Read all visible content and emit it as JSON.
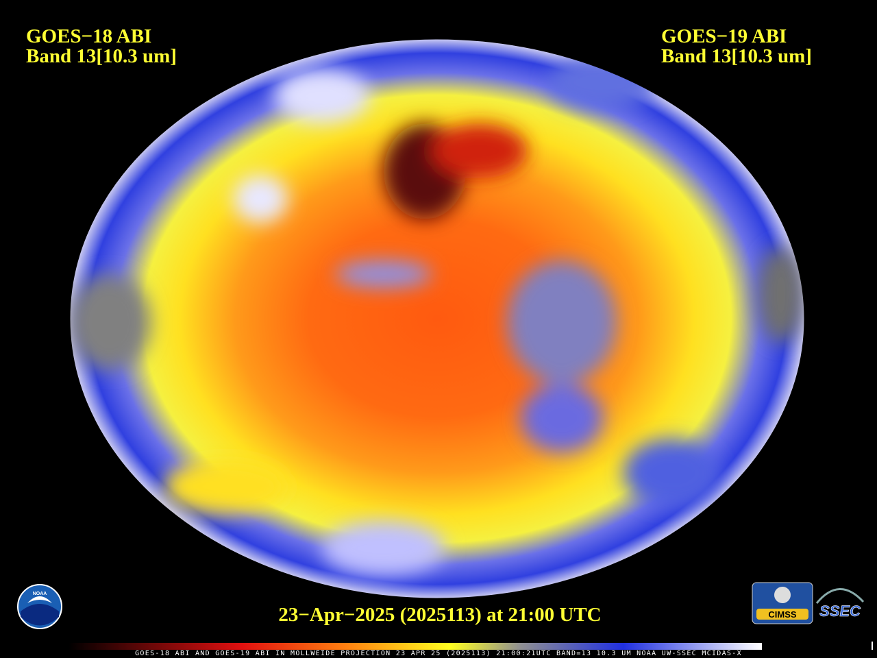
{
  "header": {
    "left_line1": "GOES−18 ABI",
    "left_line2": "Band 13[10.3 um]",
    "right_line1": "GOES−19 ABI",
    "right_line2": "Band 13[10.3 um]"
  },
  "timestamp": "23−Apr−2025 (2025113) at 21:00 UTC",
  "footer": "GOES-18 ABI AND GOES-19 ABI IN MOLLWEIDE PROJECTION 23 APR 25 (2025113) 21:00:21UTC BAND=13 10.3 UM NOAA UW-SSEC MCIDAS-X",
  "logos": {
    "noaa": "NOAA",
    "cimss": "CIMSS",
    "ssec": "SSEC"
  }
}
